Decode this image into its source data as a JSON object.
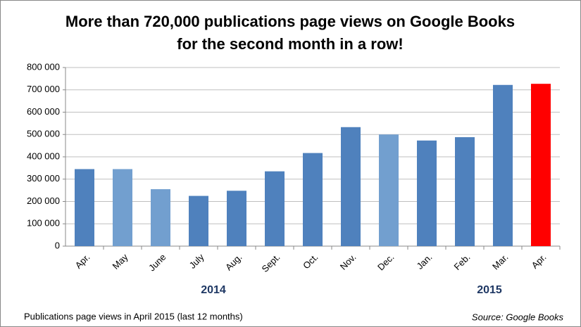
{
  "chart_data": {
    "type": "bar",
    "title": [
      "More than 720,000 publications page views on Google Books",
      "for the second month in a row!"
    ],
    "categories": [
      "Apr.",
      "May",
      "June",
      "July",
      "Aug.",
      "Sept.",
      "Oct.",
      "Nov.",
      "Dec.",
      "Jan.",
      "Feb.",
      "Mar.",
      "Apr."
    ],
    "values": [
      345000,
      345000,
      255000,
      225000,
      248000,
      335000,
      417000,
      533000,
      500000,
      473000,
      488000,
      722000,
      727000
    ],
    "colors": [
      "#4f81bd",
      "#729fcf",
      "#729fcf",
      "#4f81bd",
      "#4f81bd",
      "#4f81bd",
      "#4f81bd",
      "#4f81bd",
      "#729fcf",
      "#4f81bd",
      "#4f81bd",
      "#4f81bd",
      "#ff0000"
    ],
    "ylim": [
      0,
      800000
    ],
    "yticks": [
      0,
      {
        "value": 100000,
        "label": "100 000"
      },
      {
        "value": 200000,
        "label": "200 000"
      },
      {
        "value": 300000,
        "label": "300 000"
      },
      {
        "value": 400000,
        "label": "400 000"
      },
      {
        "value": 500000,
        "label": "500 000"
      },
      {
        "value": 600000,
        "label": "600 000"
      },
      {
        "value": 700000,
        "label": "700 000"
      },
      {
        "value": 800000,
        "label": "800 000"
      }
    ],
    "grid": true,
    "annotations": [
      "2014",
      "2015"
    ],
    "footer": "Publications page views in April 2015 (last 12 months)",
    "source": "Source: Google Books"
  }
}
